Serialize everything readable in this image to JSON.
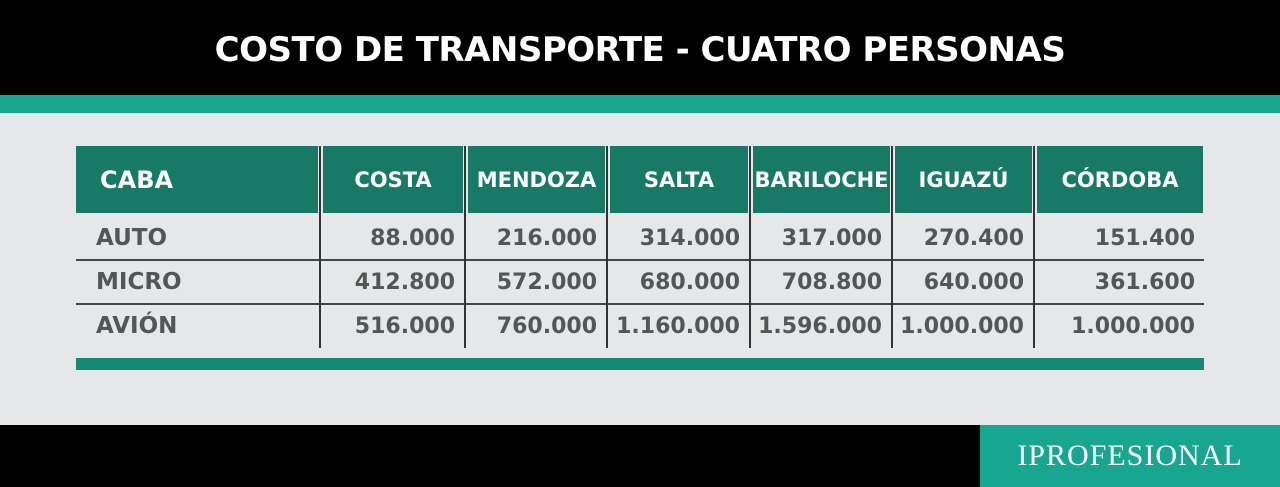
{
  "header": {
    "title": "COSTO DE TRANSPORTE - CUATRO PERSONAS"
  },
  "table": {
    "headers": [
      "CABA",
      "COSTA",
      "MENDOZA",
      "SALTA",
      "BARILOCHE",
      "IGUAZÚ",
      "CÓRDOBA"
    ],
    "rows": [
      [
        "AUTO",
        "88.000",
        "216.000",
        "314.000",
        "317.000",
        "270.400",
        "151.400"
      ],
      [
        "MICRO",
        "412.800",
        "572.000",
        "680.000",
        "708.800",
        "640.000",
        "361.600"
      ],
      [
        "AVIÓN",
        "516.000",
        "760.000",
        "1.160.000",
        "1.596.000",
        "1.000.000",
        "1.000.000"
      ]
    ]
  },
  "footer": {
    "logo": "IPROFESIONAL"
  }
}
